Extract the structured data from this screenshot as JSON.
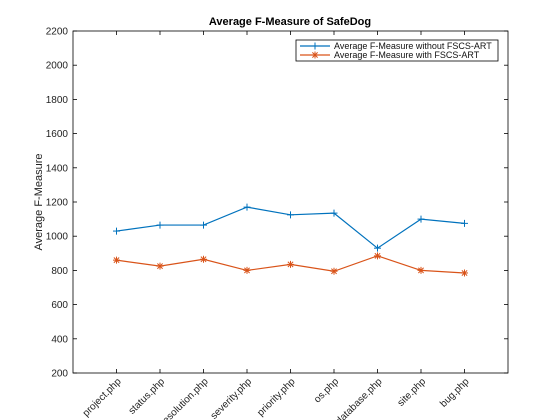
{
  "chart_data": {
    "type": "line",
    "title": "Average F-Measure of SafeDog",
    "xlabel": "",
    "ylabel": "Average F-Measure",
    "categories": [
      "project.php",
      "status.php",
      "resolution.php",
      "severity.php",
      "priority.php",
      "os.php",
      "database.php",
      "site.php",
      "bug.php"
    ],
    "ylim": [
      200,
      2200
    ],
    "yticks": [
      200,
      400,
      600,
      800,
      1000,
      1200,
      1400,
      1600,
      1800,
      2000,
      2200
    ],
    "legend_position": "top-right",
    "grid": false,
    "series": [
      {
        "name": "Average F-Measure without FSCS-ART",
        "color": "#0072BD",
        "marker": "plus",
        "values": [
          1030,
          1065,
          1065,
          1170,
          1125,
          1135,
          930,
          1100,
          1075
        ]
      },
      {
        "name": "Average F-Measure with FSCS-ART",
        "color": "#D95319",
        "marker": "asterisk",
        "values": [
          860,
          825,
          865,
          800,
          835,
          795,
          885,
          800,
          785
        ]
      }
    ]
  }
}
